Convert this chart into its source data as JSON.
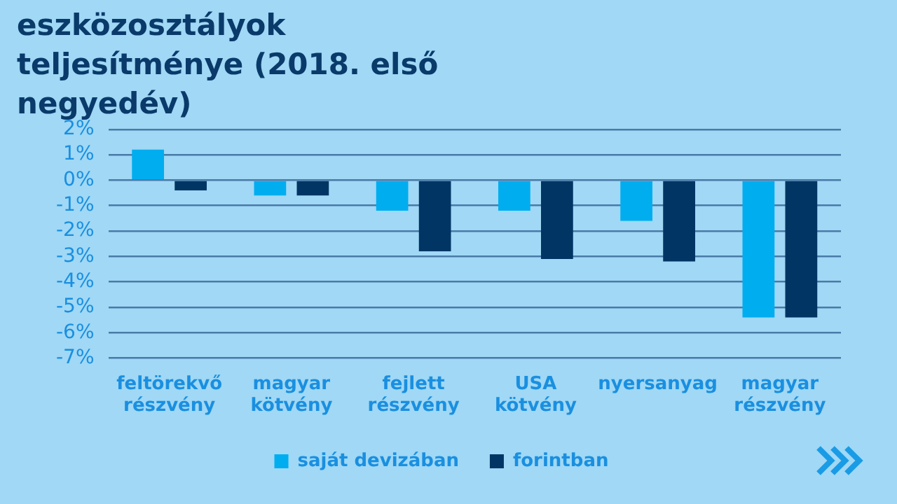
{
  "chart_data": {
    "type": "bar",
    "title": "eszközosztályok teljesítménye (2018. első negyedév)",
    "categories": [
      "feltörekvő részvény",
      "magyar kötvény",
      "fejlett részvény",
      "USA kötvény",
      "nyersanyag",
      "magyar részvény"
    ],
    "series": [
      {
        "name": "saját devizában",
        "color": "#00adef",
        "values": [
          1.2,
          -0.6,
          -1.2,
          -1.2,
          -1.6,
          -5.4
        ]
      },
      {
        "name": "forintban",
        "color": "#003564",
        "values": [
          -0.4,
          -0.6,
          -2.8,
          -3.1,
          -3.2,
          -5.4
        ]
      }
    ],
    "ylim": [
      -7,
      2
    ],
    "yticks": [
      {
        "value": -7,
        "label": "-7%"
      },
      {
        "value": -6,
        "label": "-6%"
      },
      {
        "value": -5,
        "label": "-5%"
      },
      {
        "value": -4,
        "label": "-4%"
      },
      {
        "value": -3,
        "label": "-3%"
      },
      {
        "value": -2,
        "label": "-2%"
      },
      {
        "value": -1,
        "label": "-1%"
      },
      {
        "value": 0,
        "label": "0%"
      },
      {
        "value": 1,
        "label": "1%"
      },
      {
        "value": 2,
        "label": "2%"
      }
    ],
    "grid": "y",
    "legend": "bottom"
  }
}
